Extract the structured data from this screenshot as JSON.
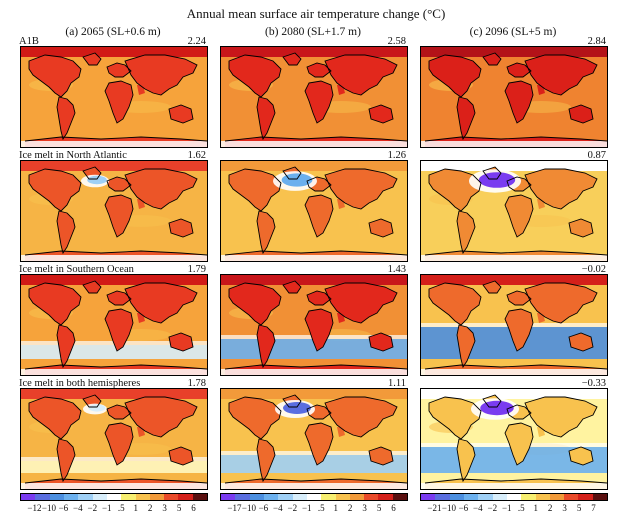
{
  "title": "Annual mean surface air temperature change (°C)",
  "columns": [
    {
      "label": "(a) 2065 (SL+0.6 m)"
    },
    {
      "label": "(b) 2080 (SL+1.7 m)"
    },
    {
      "label": "(c) 2096 (SL+5 m)"
    }
  ],
  "rows": [
    {
      "label": "A1B",
      "values": [
        "2.24",
        "2.58",
        "2.84"
      ]
    },
    {
      "label": "Ice melt in North Atlantic",
      "values": [
        "1.62",
        "1.26",
        "0.87"
      ]
    },
    {
      "label": "Ice melt in Southern Ocean",
      "values": [
        "1.79",
        "1.43",
        "−0.02"
      ]
    },
    {
      "label": "Ice melt in both hemispheres",
      "values": [
        "1.78",
        "1.11",
        "−0.33"
      ]
    }
  ],
  "colorbars": [
    {
      "ticks": [
        "−12",
        "−10",
        "−6",
        "−4",
        "−2",
        "−1",
        ".5",
        "1",
        "2",
        "3",
        "5",
        "6"
      ],
      "colors": [
        "#7a3cf0",
        "#5a6ee0",
        "#4b8fe0",
        "#6bb0ee",
        "#9fd0f6",
        "#d8eefb",
        "#ffffff",
        "#f7ef70",
        "#f8c24e",
        "#f29a3a",
        "#ea4a2a",
        "#d4201a",
        "#5a0f0f"
      ]
    },
    {
      "ticks": [
        "−17",
        "−10",
        "−6",
        "−4",
        "−2",
        "−1",
        ".5",
        "1",
        "2",
        "3",
        "5",
        "6"
      ],
      "colors": [
        "#7a3cf0",
        "#5a6ee0",
        "#4b8fe0",
        "#6bb0ee",
        "#9fd0f6",
        "#d8eefb",
        "#ffffff",
        "#f7ef70",
        "#f8c24e",
        "#f29a3a",
        "#ea4a2a",
        "#d4201a",
        "#5a0f0f"
      ]
    },
    {
      "ticks": [
        "−21",
        "−10",
        "−6",
        "−4",
        "−2",
        "−1",
        ".5",
        "1",
        "2",
        "3",
        "5",
        "7"
      ],
      "colors": [
        "#7a3cf0",
        "#5a6ee0",
        "#4b8fe0",
        "#6bb0ee",
        "#9fd0f6",
        "#d8eefb",
        "#ffffff",
        "#f7ef70",
        "#f8c24e",
        "#f29a3a",
        "#ea4a2a",
        "#d4201a",
        "#5a0f0f"
      ]
    }
  ]
}
